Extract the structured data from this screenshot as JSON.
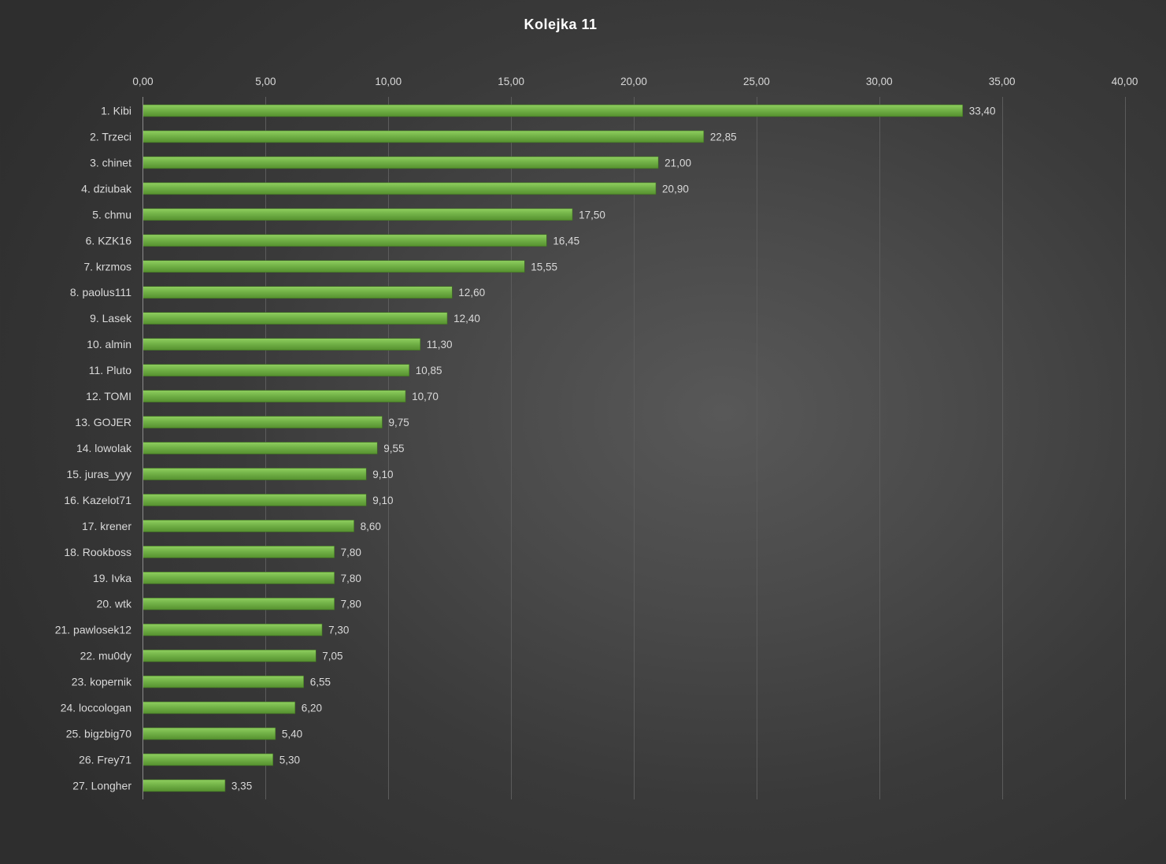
{
  "chart_data": {
    "type": "bar",
    "orientation": "horizontal",
    "title": "Kolejka  11",
    "xlabel": "",
    "ylabel": "",
    "xlim": [
      0,
      40
    ],
    "x_ticks": [
      0,
      5,
      10,
      15,
      20,
      25,
      30,
      35,
      40
    ],
    "x_tick_labels": [
      "0,00",
      "5,00",
      "10,00",
      "15,00",
      "20,00",
      "25,00",
      "30,00",
      "35,00",
      "40,00"
    ],
    "x_axis_position": "top",
    "grid": "vertical",
    "legend": "none",
    "bar_color": "#70ad47",
    "categories": [
      "1. Kibi",
      "2. Trzeci",
      "3. chinet",
      "4. dziubak",
      "5. chmu",
      "6. KZK16",
      "7. krzmos",
      "8. paolus111",
      "9. Lasek",
      "10. almin",
      "11. Pluto",
      "12. TOMI",
      "13. GOJER",
      "14. lowolak",
      "15. juras_yyy",
      "16. Kazelot71",
      "17. krener",
      "18. Rookboss",
      "19. Ivka",
      "20. wtk",
      "21. pawlosek12",
      "22. mu0dy",
      "23. kopernik",
      "24. loccologan",
      "25. bigzbig70",
      "26. Frey71",
      "27. Longher"
    ],
    "values": [
      33.4,
      22.85,
      21.0,
      20.9,
      17.5,
      16.45,
      15.55,
      12.6,
      12.4,
      11.3,
      10.85,
      10.7,
      9.75,
      9.55,
      9.1,
      9.1,
      8.6,
      7.8,
      7.8,
      7.8,
      7.3,
      7.05,
      6.55,
      6.2,
      5.4,
      5.3,
      3.35
    ],
    "value_labels": [
      "33,40",
      "22,85",
      "21,00",
      "20,90",
      "17,50",
      "16,45",
      "15,55",
      "12,60",
      "12,40",
      "11,30",
      "10,85",
      "10,70",
      "9,75",
      "9,55",
      "9,10",
      "9,10",
      "8,60",
      "7,80",
      "7,80",
      "7,80",
      "7,30",
      "7,05",
      "6,55",
      "6,20",
      "5,40",
      "5,30",
      "3,35"
    ]
  }
}
